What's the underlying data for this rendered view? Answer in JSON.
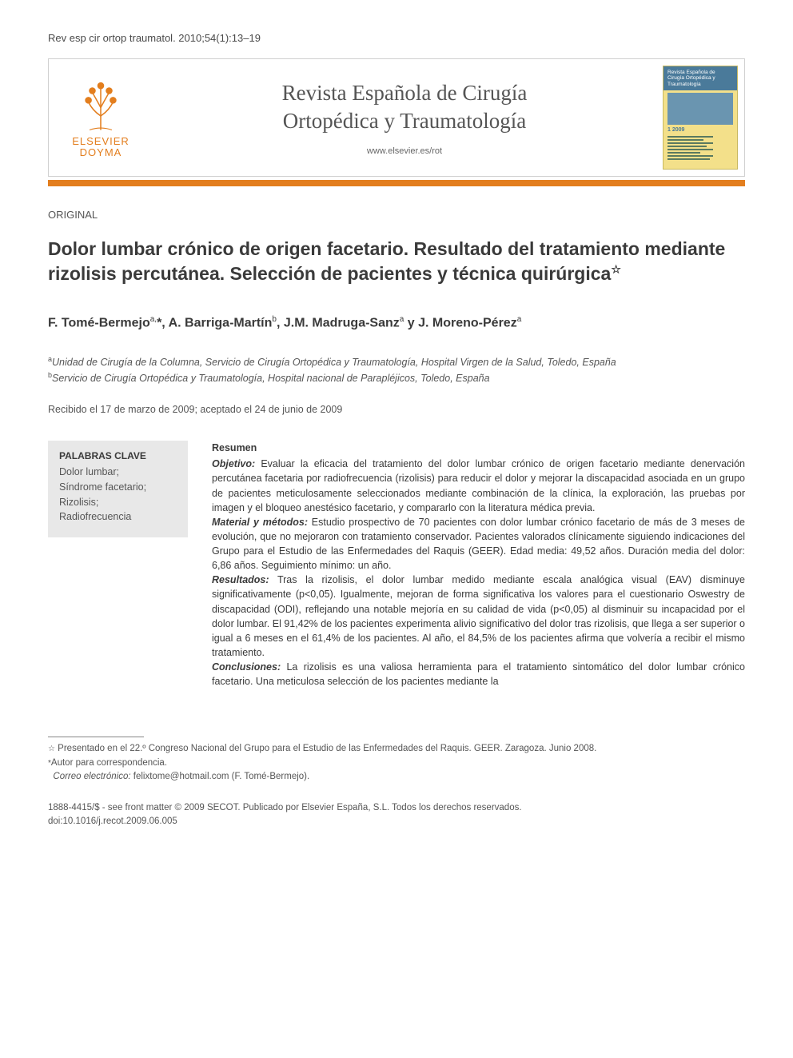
{
  "citation": "Rev esp cir ortop traumatol. 2010;54(1):13–19",
  "publisher": {
    "name": "ELSEVIER",
    "sub": "DOYMA",
    "tree_color": "#e37e1e"
  },
  "journal": {
    "title_line1": "Revista Española de Cirugía",
    "title_line2": "Ortopédica y Traumatología",
    "url": "www.elsevier.es/rot",
    "cover": {
      "title": "Revista Española de Cirugía Ortopédica y Traumatología",
      "issue_label": "1 2009",
      "band_color": "#4a7a9a",
      "bg_color": "#f3e08a"
    }
  },
  "orange_bar_color": "#e37e1e",
  "section_label": "ORIGINAL",
  "article_title": "Dolor lumbar crónico de origen facetario. Resultado del tratamiento mediante rizolisis percutánea. Selección de pacientes y técnica quirúrgica",
  "title_star": "☆",
  "authors_html": "F. Tomé-Bermejo<sup>a,</sup>*, A. Barriga-Martín<sup>b</sup>, J.M. Madruga-Sanz<sup>a</sup> y J. Moreno-Pérez<sup>a</sup>",
  "affiliations": [
    {
      "sup": "a",
      "text": "Unidad de Cirugía de la Columna, Servicio de Cirugía Ortopédica y Traumatología, Hospital Virgen de la Salud, Toledo, España"
    },
    {
      "sup": "b",
      "text": "Servicio de Cirugía Ortopédica y Traumatología, Hospital nacional de Parapléjicos, Toledo, España"
    }
  ],
  "dates": "Recibido el 17 de marzo de 2009; aceptado el 24 de junio de 2009",
  "keywords": {
    "heading": "PALABRAS CLAVE",
    "items": [
      "Dolor lumbar;",
      "Síndrome facetario;",
      "Rizolisis;",
      "Radiofrecuencia"
    ]
  },
  "abstract": {
    "heading": "Resumen",
    "sections": [
      {
        "label": "Objetivo:",
        "text": " Evaluar la eficacia del tratamiento del dolor lumbar crónico de origen facetario mediante denervación percutánea facetaria por radiofrecuencia (rizolisis) para reducir el dolor y mejorar la discapacidad asociada en un grupo de pacientes meticulosamente seleccionados mediante combinación de la clínica, la exploración, las pruebas por imagen y el bloqueo anestésico facetario, y compararlo con la literatura médica previa."
      },
      {
        "label": "Material y métodos:",
        "text": " Estudio prospectivo de 70 pacientes con dolor lumbar crónico facetario de más de 3 meses de evolución, que no mejoraron con tratamiento conservador. Pacientes valorados clínicamente siguiendo indicaciones del Grupo para el Estudio de las Enfermedades del Raquis (GEER). Edad media: 49,52 años. Duración media del dolor: 6,86 años. Seguimiento mínimo: un año."
      },
      {
        "label": "Resultados:",
        "text": " Tras la rizolisis, el dolor lumbar medido mediante escala analógica visual (EAV) disminuye significativamente (p<0,05). Igualmente, mejoran de forma significativa los valores para el cuestionario Oswestry de discapacidad (ODI), reflejando una notable mejoría en su calidad de vida (p<0,05) al disminuir su incapacidad por el dolor lumbar. El 91,42% de los pacientes experimenta alivio significativo del dolor tras rizolisis, que llega a ser superior o igual a 6 meses en el 61,4% de los pacientes. Al año, el 84,5% de los pacientes afirma que volvería a recibir el mismo tratamiento."
      },
      {
        "label": "Conclusiones:",
        "text": " La rizolisis es una valiosa herramienta para el tratamiento sintomático del dolor lumbar crónico facetario. Una meticulosa selección de los pacientes mediante la"
      }
    ]
  },
  "footnotes": {
    "presented": {
      "sym": "☆",
      "text": "Presentado en el 22.º Congreso Nacional del Grupo para el Estudio de las Enfermedades del Raquis. GEER. Zaragoza. Junio 2008."
    },
    "corresponding": {
      "sym": "*",
      "text": "Autor para correspondencia."
    },
    "email": {
      "label": "Correo electrónico:",
      "value": "felixtome@hotmail.com (F. Tomé-Bermejo)."
    }
  },
  "copyright": {
    "line1": "1888-4415/$ - see front matter © 2009 SECOT. Publicado por Elsevier España, S.L. Todos los derechos reservados.",
    "doi": "doi:10.1016/j.recot.2009.06.005"
  }
}
